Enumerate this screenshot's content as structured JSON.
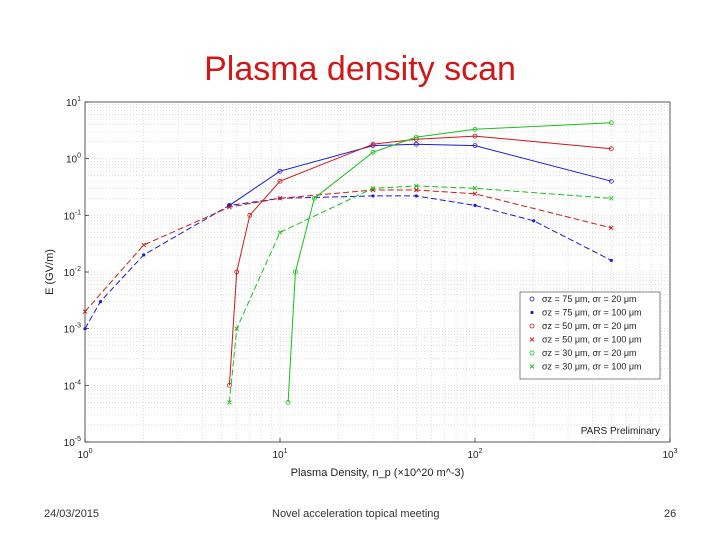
{
  "slide": {
    "title": "Plasma density scan",
    "footer_date": "24/03/2015",
    "footer_center": "Novel acceleration topical meeting",
    "page_number": "26"
  },
  "chart_data": {
    "type": "line",
    "xscale": "log",
    "yscale": "log",
    "xlim": [
      1,
      1000
    ],
    "ylim": [
      1e-05,
      10
    ],
    "grid": true,
    "xlabel": "Plasma Density, n_p (×10^20 m^-3)",
    "ylabel": "E (GV/m)",
    "x_ticks": [
      "10^0",
      "10^1",
      "10^2",
      "10^3"
    ],
    "y_ticks": [
      "10^-5",
      "10^-4",
      "10^-3",
      "10^-2",
      "10^-1",
      "10^0",
      "10^1"
    ],
    "annotation": "PARS Preliminary",
    "legend_position": "lower-right",
    "series": [
      {
        "name": "σz = 75 μm, σr = 20 μm",
        "color": "#1a1ad0",
        "dash": "solid",
        "marker": "circle",
        "points": [
          [
            5.5,
            0.15
          ],
          [
            10,
            0.6
          ],
          [
            30,
            1.7
          ],
          [
            50,
            1.8
          ],
          [
            100,
            1.7
          ],
          [
            500,
            0.4
          ]
        ]
      },
      {
        "name": "σz = 75 μm, σr = 100 μm",
        "color": "#1a1ad0",
        "dash": "dashed",
        "marker": "dot",
        "points": [
          [
            1,
            0.001
          ],
          [
            1.2,
            0.003
          ],
          [
            2,
            0.02
          ],
          [
            5.5,
            0.15
          ],
          [
            10,
            0.2
          ],
          [
            30,
            0.22
          ],
          [
            50,
            0.22
          ],
          [
            100,
            0.15
          ],
          [
            200,
            0.08
          ],
          [
            500,
            0.016
          ]
        ]
      },
      {
        "name": "σz = 50 μm, σr = 20 μm",
        "color": "#d01818",
        "dash": "solid",
        "marker": "circle",
        "points": [
          [
            5.5,
            0.0001
          ],
          [
            6,
            0.01
          ],
          [
            7,
            0.1
          ],
          [
            10,
            0.4
          ],
          [
            30,
            1.8
          ],
          [
            50,
            2.2
          ],
          [
            100,
            2.5
          ],
          [
            500,
            1.5
          ]
        ]
      },
      {
        "name": "σz = 50 μm, σr = 100 μm",
        "color": "#d01818",
        "dash": "dashed",
        "marker": "x",
        "points": [
          [
            1,
            0.002
          ],
          [
            2,
            0.03
          ],
          [
            5.5,
            0.14
          ],
          [
            10,
            0.2
          ],
          [
            30,
            0.28
          ],
          [
            50,
            0.28
          ],
          [
            100,
            0.24
          ],
          [
            500,
            0.06
          ]
        ]
      },
      {
        "name": "σz = 30 μm, σr = 20 μm",
        "color": "#18c018",
        "dash": "solid",
        "marker": "circle",
        "points": [
          [
            11,
            5e-05
          ],
          [
            12,
            0.01
          ],
          [
            15,
            0.2
          ],
          [
            30,
            1.3
          ],
          [
            50,
            2.4
          ],
          [
            100,
            3.3
          ],
          [
            500,
            4.3
          ]
        ]
      },
      {
        "name": "σz = 30 μm, σr = 100 μm",
        "color": "#18c018",
        "dash": "dashed",
        "marker": "x",
        "points": [
          [
            5.5,
            5e-05
          ],
          [
            6,
            0.001
          ],
          [
            10,
            0.05
          ],
          [
            30,
            0.3
          ],
          [
            50,
            0.33
          ],
          [
            100,
            0.3
          ],
          [
            500,
            0.2
          ]
        ]
      }
    ]
  }
}
